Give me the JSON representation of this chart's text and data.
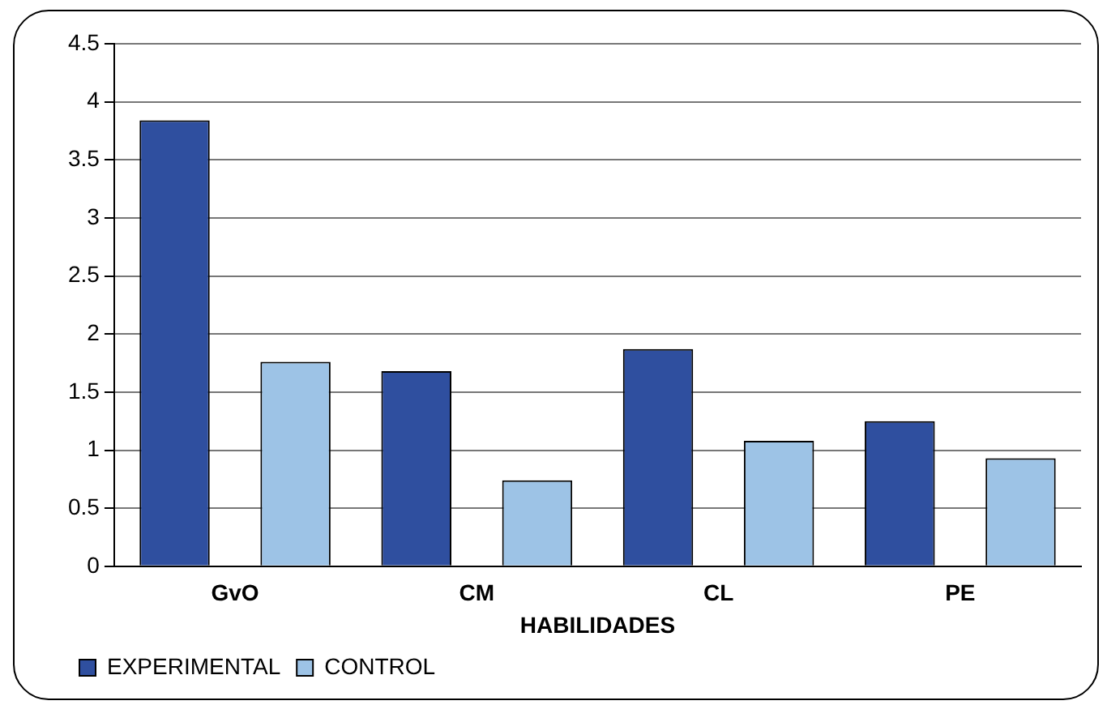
{
  "chart_data": {
    "type": "bar",
    "xlabel": "HABILIDADES",
    "categories": [
      "GvO",
      "CM",
      "CL",
      "PE"
    ],
    "series": [
      {
        "name": "EXPERIMENTAL",
        "color": "#2f4f9f",
        "values": [
          3.84,
          1.68,
          1.87,
          1.25
        ]
      },
      {
        "name": "CONTROL",
        "color": "#9dc3e6",
        "values": [
          1.76,
          0.74,
          1.08,
          0.93
        ]
      }
    ],
    "ylim": [
      0,
      4.5
    ],
    "yticks": [
      0,
      0.5,
      1,
      1.5,
      2,
      2.5,
      3,
      3.5,
      4,
      4.5
    ],
    "grid": "y",
    "legend": "bottom left"
  }
}
